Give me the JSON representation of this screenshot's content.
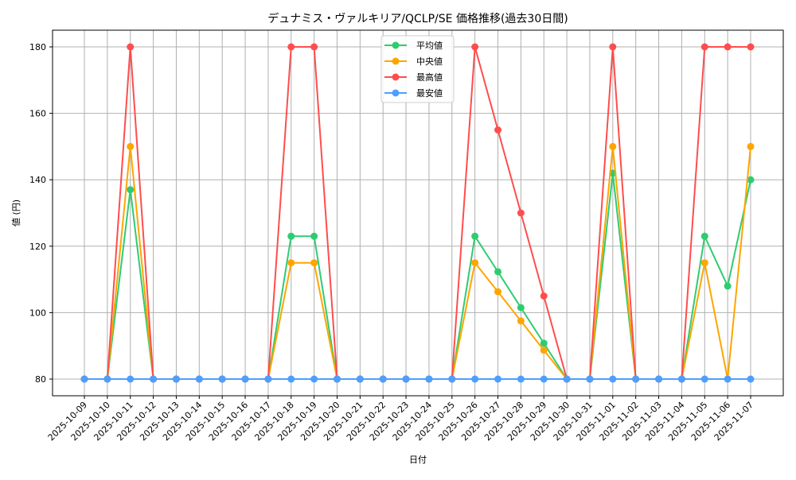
{
  "chart_data": {
    "type": "line",
    "title": "デュナミス・ヴァルキリア/QCLP/SE 価格推移(過去30日間)",
    "xlabel": "日付",
    "ylabel": "値 (円)",
    "ylim": [
      75,
      185
    ],
    "yticks": [
      80,
      100,
      120,
      140,
      160,
      180
    ],
    "grid": true,
    "legend_position": "upper center",
    "categories": [
      "2025-10-09",
      "2025-10-10",
      "2025-10-11",
      "2025-10-12",
      "2025-10-13",
      "2025-10-14",
      "2025-10-15",
      "2025-10-16",
      "2025-10-17",
      "2025-10-18",
      "2025-10-19",
      "2025-10-20",
      "2025-10-21",
      "2025-10-22",
      "2025-10-23",
      "2025-10-24",
      "2025-10-25",
      "2025-10-26",
      "2025-10-27",
      "2025-10-28",
      "2025-10-29",
      "2025-10-30",
      "2025-10-31",
      "2025-11-01",
      "2025-11-02",
      "2025-11-03",
      "2025-11-04",
      "2025-11-05",
      "2025-11-06",
      "2025-11-07"
    ],
    "series": [
      {
        "name": "平均値",
        "color": "#2ecc71",
        "values": [
          80,
          80,
          137,
          80,
          80,
          80,
          80,
          80,
          80,
          123,
          123,
          80,
          80,
          80,
          80,
          80,
          80,
          123,
          112.3,
          101.5,
          90.8,
          80,
          80,
          142,
          80,
          80,
          80,
          123,
          108,
          140
        ]
      },
      {
        "name": "中央値",
        "color": "#ffa500",
        "values": [
          80,
          80,
          150,
          80,
          80,
          80,
          80,
          80,
          80,
          115,
          115,
          80,
          80,
          80,
          80,
          80,
          80,
          115,
          106.3,
          97.5,
          88.7,
          80,
          80,
          150,
          80,
          80,
          80,
          115,
          80,
          150
        ]
      },
      {
        "name": "最高値",
        "color": "#ff4d4d",
        "values": [
          80,
          80,
          180,
          80,
          80,
          80,
          80,
          80,
          80,
          180,
          180,
          80,
          80,
          80,
          80,
          80,
          80,
          180,
          155,
          130,
          105,
          80,
          80,
          180,
          80,
          80,
          80,
          180,
          180,
          180
        ]
      },
      {
        "name": "最安値",
        "color": "#4d9fff",
        "values": [
          80,
          80,
          80,
          80,
          80,
          80,
          80,
          80,
          80,
          80,
          80,
          80,
          80,
          80,
          80,
          80,
          80,
          80,
          80,
          80,
          80,
          80,
          80,
          80,
          80,
          80,
          80,
          80,
          80,
          80
        ]
      }
    ]
  },
  "colors": {
    "grid": "#b0b0b0",
    "axis": "#000000",
    "legend_border": "#cccccc"
  }
}
